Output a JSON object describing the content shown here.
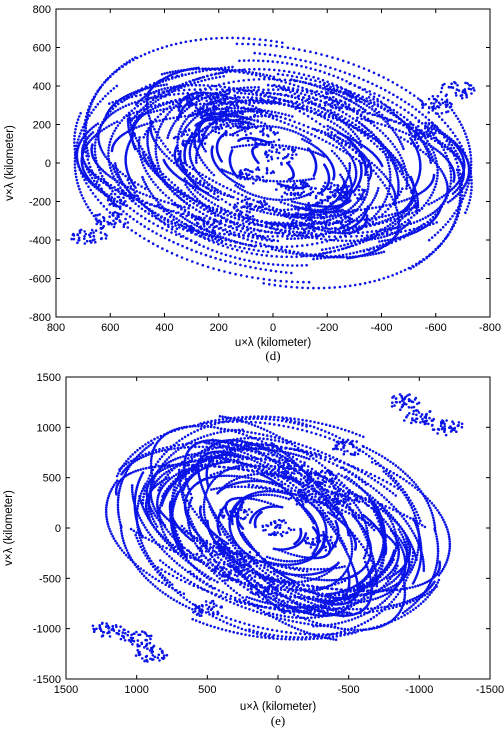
{
  "chart_data": [
    {
      "type": "scatter",
      "panel": "(d)",
      "xlabel": "u×λ (kilometer)",
      "ylabel": "v×λ (kilometer)",
      "xlim": [
        800,
        -800
      ],
      "ylim": [
        -800,
        800
      ],
      "x_reversed": true,
      "xticks": [
        "800",
        "600",
        "400",
        "200",
        "0",
        "-200",
        "-400",
        "-600",
        "-800"
      ],
      "yticks": [
        "-800",
        "-600",
        "-400",
        "-200",
        "0",
        "200",
        "400",
        "600",
        "800"
      ],
      "color": "#0a14e6",
      "orientation_deg": 25,
      "max_extent": 760,
      "series": [
        {
          "x": [
            220,
            160,
            300,
            250,
            180,
            120,
            -150,
            -230,
            -280,
            -200,
            -120,
            80,
            -30,
            40,
            -80,
            60,
            600,
            680,
            560,
            -600,
            -680,
            -560,
            250,
            -250
          ],
          "y": [
            250,
            180,
            130,
            320,
            320,
            220,
            -250,
            -300,
            -160,
            -150,
            -320,
            -230,
            40,
            140,
            -140,
            -60,
            -300,
            -380,
            -180,
            300,
            380,
            180,
            -330,
            330
          ]
        }
      ]
    },
    {
      "type": "scatter",
      "panel": "(e)",
      "xlabel": "u×λ (kilometer)",
      "ylabel": "v×λ (kilometer)",
      "xlim": [
        1500,
        -1500
      ],
      "ylim": [
        -1500,
        1500
      ],
      "x_reversed": true,
      "xticks": [
        "1500",
        "1000",
        "500",
        "0",
        "-500",
        "-1000",
        "-1500"
      ],
      "yticks": [
        "-1500",
        "-1000",
        "-500",
        "0",
        "500",
        "1000",
        "1500"
      ],
      "color": "#0a14e6",
      "orientation_deg": 40,
      "max_extent": 1300,
      "series": [
        {
          "x": [
            350,
            200,
            450,
            100,
            -300,
            -200,
            -450,
            -100,
            500,
            -500,
            1200,
            1000,
            900,
            -1200,
            -1000,
            -900,
            0,
            300,
            -300
          ],
          "y": [
            -450,
            -300,
            -200,
            -600,
            500,
            300,
            300,
            600,
            -800,
            800,
            -1000,
            -1100,
            -1250,
            1000,
            1100,
            1250,
            0,
            150,
            -150
          ]
        }
      ]
    }
  ]
}
